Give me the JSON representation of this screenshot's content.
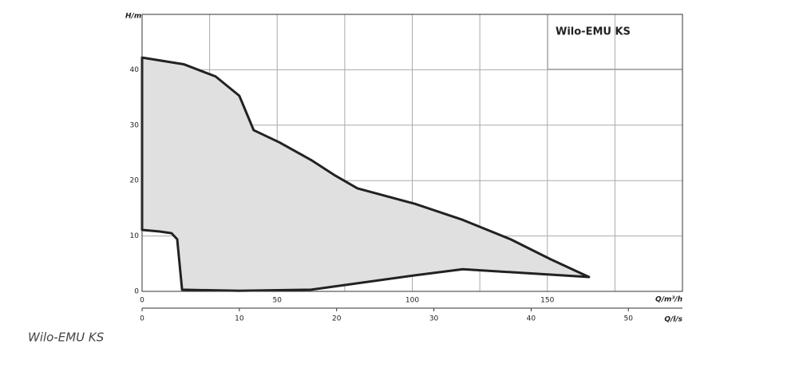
{
  "chart_data": {
    "type": "area",
    "caption": "Wilo-EMU KS",
    "x_label": "Q/m³/h",
    "y_label": "H/m",
    "x2_label": "Q/l/s",
    "xlim": [
      0,
      200
    ],
    "xticks": [
      0,
      50,
      100,
      150
    ],
    "xgrid": [
      0,
      25,
      50,
      75,
      100,
      125,
      150,
      175,
      200
    ],
    "ylim": [
      0,
      50
    ],
    "yticks": [
      0,
      10,
      20,
      30,
      40
    ],
    "ygrid": [
      0,
      10,
      20,
      30,
      40,
      50
    ],
    "x2lim": [
      0,
      55.56
    ],
    "x2ticks": [
      0,
      10,
      20,
      30,
      40,
      50
    ],
    "grid": true,
    "series": [
      {
        "name": "Wilo-EMU KS",
        "color": "#e0e0e0",
        "x": [
          0,
          15.4,
          27.2,
          36,
          41.3,
          50.8,
          62.6,
          71.5,
          79.7,
          101,
          118.7,
          136.4,
          151.2,
          165.4,
          118.7,
          101,
          62.6,
          36,
          14.8,
          13,
          10.9,
          6.5,
          0
        ],
        "values": [
          42.2,
          41,
          38.8,
          35.3,
          29.1,
          26.9,
          23.7,
          20.9,
          18.6,
          15.8,
          12.9,
          9.4,
          5.8,
          2.6,
          4.0,
          2.9,
          0.3,
          0.1,
          0.3,
          9.4,
          10.5,
          10.8,
          11.1
        ]
      }
    ]
  }
}
